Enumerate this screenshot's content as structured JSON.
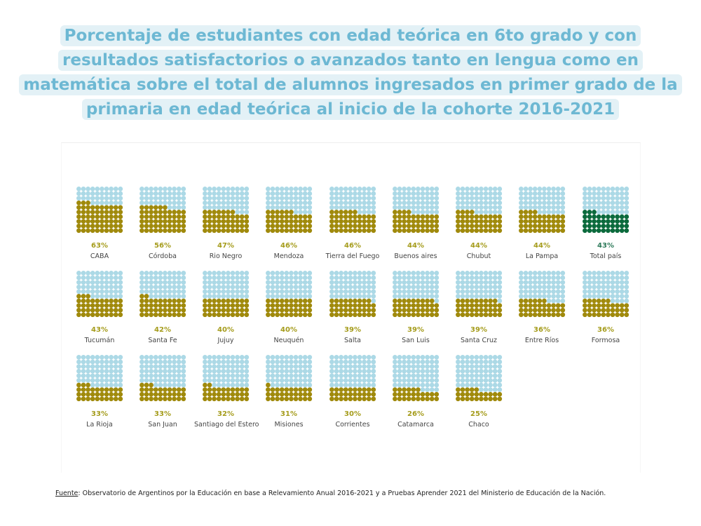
{
  "title": "Porcentaje de estudiantes con edad teórica en 6to grado y con resultados satisfactorios o avanzados tanto en lengua como en matemática sobre el total de alumnos ingresados en primer grado de la primaria en edad teórica al inicio de la cohorte 2016-2021",
  "source": {
    "label": "Fuente",
    "text": ": Observatorio de Argentinos por la Educación en base a Relevamiento Anual 2016-2021 y a Pruebas Aprender 2021 del Ministerio de Educación de la Nación."
  },
  "colors": {
    "filled": "#a08a0c",
    "empty": "#acd9e6",
    "total_filled": "#0b6a3c",
    "title": "#6db8d3"
  },
  "chart_data": {
    "type": "waffle",
    "grid": [
      10,
      10
    ],
    "unit": "%",
    "categories": [
      "CABA",
      "Córdoba",
      "Rio Negro",
      "Mendoza",
      "Tierra del Fuego",
      "Buenos aires",
      "Chubut",
      "La Pampa",
      "Total país",
      "Tucumán",
      "Santa Fe",
      "Jujuy",
      "Neuquén",
      "Salta",
      "San Luis",
      "Santa Cruz",
      "Entre Ríos",
      "Formosa",
      "La Rioja",
      "San Juan",
      "Santiago del Estero",
      "Misiones",
      "Corrientes",
      "Catamarca",
      "Chaco"
    ],
    "values": [
      63,
      56,
      47,
      46,
      46,
      44,
      44,
      44,
      43,
      43,
      42,
      40,
      40,
      39,
      39,
      39,
      36,
      36,
      33,
      33,
      32,
      31,
      30,
      26,
      25
    ],
    "labels": [
      "63%",
      "56%",
      "47%",
      "46%",
      "46%",
      "44%",
      "44%",
      "44%",
      "43%",
      "43%",
      "42%",
      "40%",
      "40%",
      "39%",
      "39%",
      "39%",
      "36%",
      "36%",
      "33%",
      "33%",
      "32%",
      "31%",
      "30%",
      "26%",
      "25%"
    ],
    "highlight": "Total país"
  }
}
